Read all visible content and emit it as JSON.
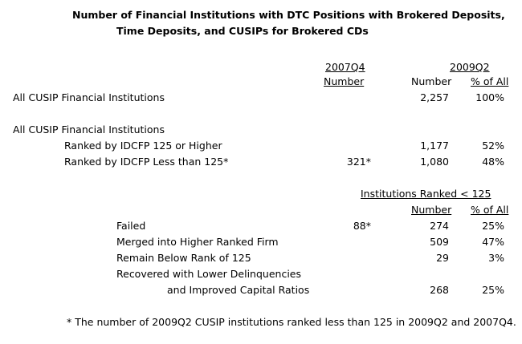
{
  "title": {
    "line1": "Number of Financial Institutions with DTC Positions with Brokered Deposits,",
    "line2": "Time Deposits, and CUSIPs for Brokered CDs"
  },
  "headers": {
    "col_2007q4_period": "2007Q4",
    "col_2007q4_sub": "Number",
    "col_2009q2_period": "2009Q2",
    "col_2009q2_number": "Number",
    "col_2009q2_pct": "% of All"
  },
  "rows_top": [
    {
      "label": "All CUSIP Financial Institutions",
      "q4": "",
      "num": "2,257",
      "pct": "100%"
    }
  ],
  "section_label": "All CUSIP Financial Institutions",
  "rows_ranked": [
    {
      "label": "Ranked by IDCFP 125 or Higher",
      "q4": "",
      "num": "1,177",
      "pct": "52%"
    },
    {
      "label": "Ranked by IDCFP Less than 125*",
      "q4": "321*",
      "num": "1,080",
      "pct": "48%"
    }
  ],
  "sub_header": {
    "title": "Institutions Ranked < 125",
    "number": "Number",
    "pct": "% of All"
  },
  "rows_below": [
    {
      "label": "Failed",
      "q4": "88*",
      "num": "274",
      "pct": "25%"
    },
    {
      "label": "Merged into Higher Ranked Firm",
      "q4": "",
      "num": "509",
      "pct": "47%"
    },
    {
      "label": "Remain Below Rank of 125",
      "q4": "",
      "num": "29",
      "pct": "3%"
    }
  ],
  "row_recovered": {
    "label1": "Recovered with Lower Delinquencies",
    "label2": "and Improved Capital Ratios",
    "num": "268",
    "pct": "25%"
  },
  "footnote": "* The number of 2009Q2 CUSIP institutions ranked less than 125 in 2009Q2 and 2007Q4."
}
